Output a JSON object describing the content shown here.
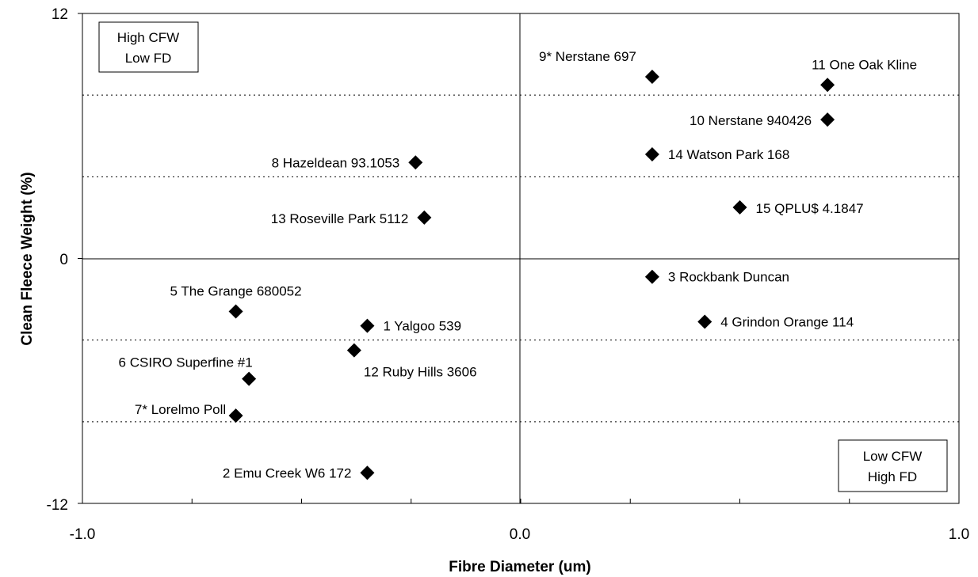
{
  "chart_data": {
    "type": "scatter",
    "title": "",
    "xlabel": "Fibre Diameter (um)",
    "ylabel": "Clean Fleece Weight (%)",
    "xlim": [
      -1.0,
      1.0
    ],
    "ylim": [
      -12,
      12
    ],
    "x_ticks": [
      "-1.0",
      "0.0",
      "1.0"
    ],
    "y_ticks": [
      "12",
      "0",
      "-12"
    ],
    "gridlines": "horizontal dotted at -8, -4, 4, 8",
    "marker": "diamond",
    "marker_color": "#000000",
    "points": [
      {
        "label": "1 Yalgoo 539",
        "x": -0.35,
        "y": -3.3
      },
      {
        "label": "2 Emu Creek W6 172",
        "x": -0.35,
        "y": -10.5
      },
      {
        "label": "3 Rockbank Duncan",
        "x": 0.3,
        "y": -0.9
      },
      {
        "label": "4 Grindon Orange 114",
        "x": 0.42,
        "y": -3.1
      },
      {
        "label": "5 The Grange 680052",
        "x": -0.65,
        "y": -2.6
      },
      {
        "label": "6 CSIRO Superfine #1",
        "x": -0.62,
        "y": -5.9
      },
      {
        "label": "7* Lorelmo Poll",
        "x": -0.65,
        "y": -7.7
      },
      {
        "label": "8 Hazeldean 93.1053",
        "x": -0.24,
        "y": 4.7
      },
      {
        "label": "9* Nerstane 697",
        "x": 0.3,
        "y": 8.9
      },
      {
        "label": "10 Nerstane 940426",
        "x": 0.7,
        "y": 6.8
      },
      {
        "label": "11 One Oak Kline",
        "x": 0.7,
        "y": 8.5
      },
      {
        "label": "12 Ruby Hills 3606",
        "x": -0.38,
        "y": -4.5
      },
      {
        "label": "13 Roseville Park 5112",
        "x": -0.22,
        "y": 2.0
      },
      {
        "label": "14 Watson Park 168",
        "x": 0.3,
        "y": 5.1
      },
      {
        "label": "15 QPLU$ 4.1847",
        "x": 0.5,
        "y": 2.5
      }
    ],
    "annotations": [
      {
        "lines": [
          "High CFW",
          "Low FD"
        ],
        "position": "top-left"
      },
      {
        "lines": [
          "Low CFW",
          "High FD"
        ],
        "position": "bottom-right"
      }
    ]
  }
}
